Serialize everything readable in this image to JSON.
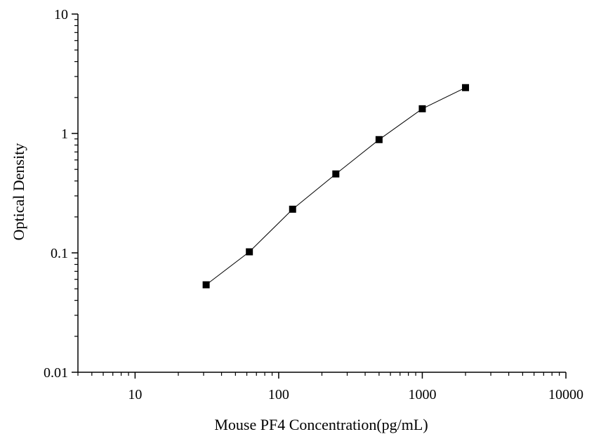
{
  "chart_data": {
    "type": "line",
    "title": "",
    "xlabel": "Mouse PF4 Concentration(pg/mL)",
    "ylabel": "Optical Density",
    "x_scale": "log",
    "y_scale": "log",
    "xlim": [
      4,
      10000
    ],
    "ylim": [
      0.01,
      10
    ],
    "x_ticks": [
      10,
      100,
      1000,
      10000
    ],
    "x_tick_labels": [
      "10",
      "100",
      "1000",
      "10000"
    ],
    "y_ticks": [
      0.01,
      0.1,
      1,
      10
    ],
    "y_tick_labels": [
      "0.01",
      "0.1",
      "1",
      "10"
    ],
    "grid": false,
    "legend": "none",
    "series": [
      {
        "x": [
          31.25,
          62.5,
          125,
          250,
          500,
          1000,
          2000
        ],
        "y": [
          0.054,
          0.102,
          0.232,
          0.458,
          0.888,
          1.61,
          2.42
        ],
        "color": "#000000",
        "marker": "square"
      }
    ]
  }
}
